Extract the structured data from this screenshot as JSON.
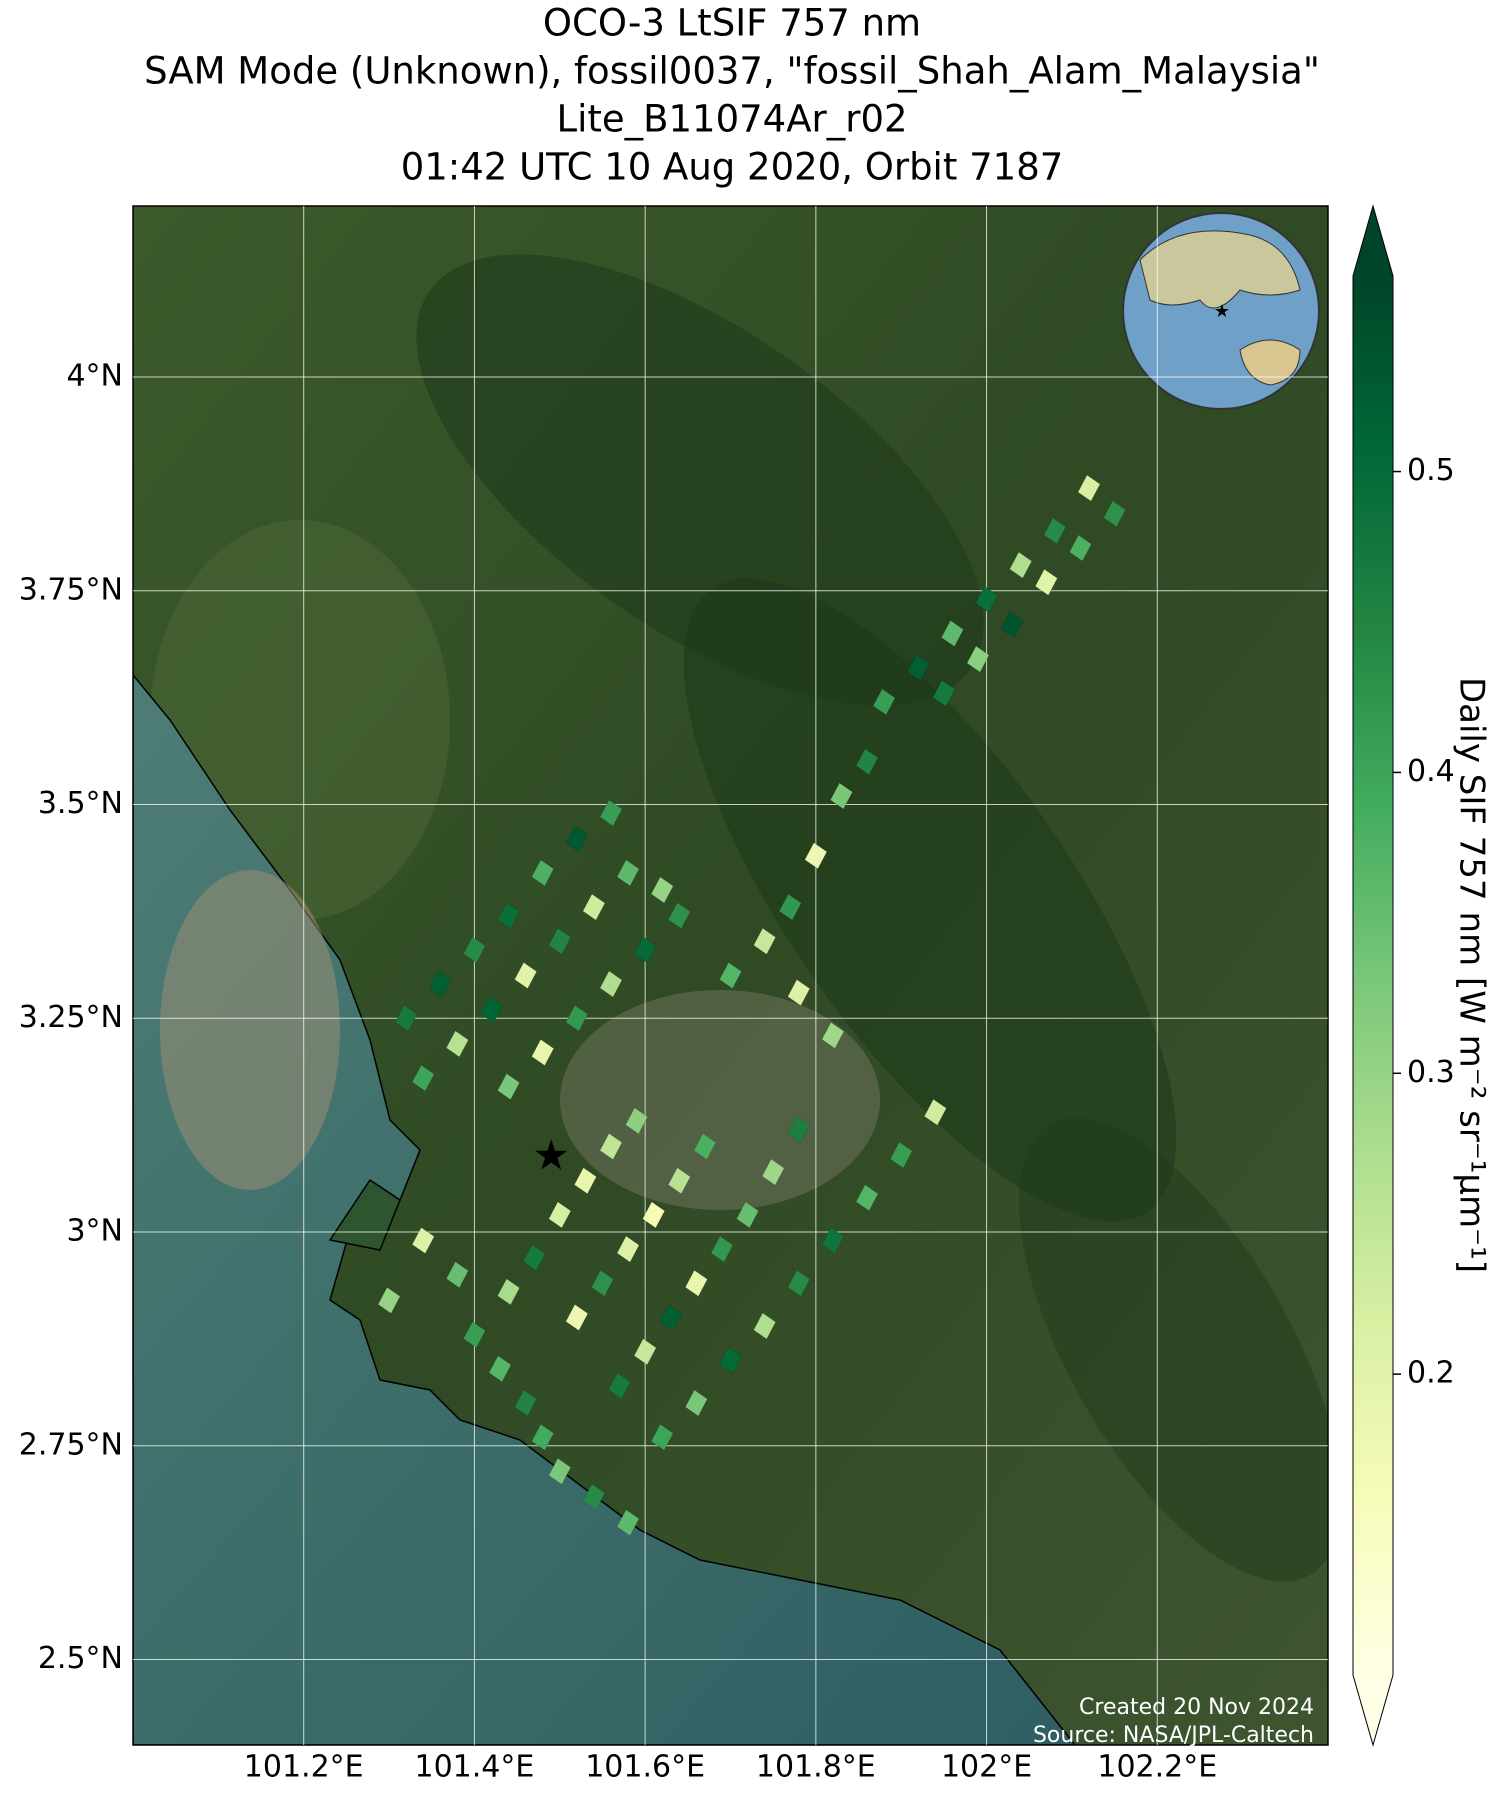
{
  "chart_data": {
    "type": "map",
    "title": [
      "OCO-3 LtSIF 757 nm",
      "SAM Mode (Unknown), fossil0037, \"fossil_Shah_Alam_Malaysia\"",
      "Lite_B11074Ar_r02",
      "01:42 UTC 10 Aug 2020, Orbit 7187"
    ],
    "xlim": [
      101.0,
      102.4
    ],
    "ylim": [
      2.4,
      4.2
    ],
    "xticks": [
      {
        "value": 101.2,
        "label": "101.2°E"
      },
      {
        "value": 101.4,
        "label": "101.4°E"
      },
      {
        "value": 101.6,
        "label": "101.6°E"
      },
      {
        "value": 101.8,
        "label": "101.8°E"
      },
      {
        "value": 102.0,
        "label": "102°E"
      },
      {
        "value": 102.2,
        "label": "102.2°E"
      }
    ],
    "yticks": [
      {
        "value": 2.5,
        "label": "2.5°N"
      },
      {
        "value": 2.75,
        "label": "2.75°N"
      },
      {
        "value": 3.0,
        "label": "3°N"
      },
      {
        "value": 3.25,
        "label": "3.25°N"
      },
      {
        "value": 3.5,
        "label": "3.5°N"
      },
      {
        "value": 3.75,
        "label": "3.75°N"
      },
      {
        "value": 4.0,
        "label": "4°N"
      }
    ],
    "grid": true,
    "x": [
      101.4,
      101.43,
      101.46,
      101.48,
      101.5,
      101.54,
      101.58,
      101.44,
      101.47,
      101.5,
      101.53,
      101.56,
      101.59,
      101.52,
      101.55,
      101.58,
      101.61,
      101.64,
      101.67,
      101.57,
      101.6,
      101.63,
      101.66,
      101.69,
      101.72,
      101.75,
      101.78,
      101.62,
      101.66,
      101.7,
      101.74,
      101.78,
      101.82,
      101.86,
      101.9,
      101.94,
      101.38,
      101.34,
      101.3,
      101.32,
      101.36,
      101.4,
      101.44,
      101.48,
      101.52,
      101.56,
      101.34,
      101.38,
      101.42,
      101.46,
      101.5,
      101.54,
      101.58,
      101.62,
      101.44,
      101.48,
      101.52,
      101.56,
      101.6,
      101.64,
      101.7,
      101.74,
      101.77,
      101.8,
      101.83,
      101.86,
      101.78,
      101.82,
      101.88,
      101.92,
      101.96,
      102.0,
      102.04,
      102.08,
      102.12,
      101.95,
      101.99,
      102.03,
      102.07,
      102.11,
      102.15
    ],
    "y": [
      2.88,
      2.84,
      2.8,
      2.76,
      2.72,
      2.69,
      2.66,
      2.93,
      2.97,
      3.02,
      3.06,
      3.1,
      3.13,
      2.9,
      2.94,
      2.98,
      3.02,
      3.06,
      3.1,
      2.82,
      2.86,
      2.9,
      2.94,
      2.98,
      3.02,
      3.07,
      3.12,
      2.76,
      2.8,
      2.85,
      2.89,
      2.94,
      2.99,
      3.04,
      3.09,
      3.14,
      2.95,
      2.99,
      2.92,
      3.25,
      3.29,
      3.33,
      3.37,
      3.42,
      3.46,
      3.49,
      3.18,
      3.22,
      3.26,
      3.3,
      3.34,
      3.38,
      3.42,
      3.4,
      3.17,
      3.21,
      3.25,
      3.29,
      3.33,
      3.37,
      3.3,
      3.34,
      3.38,
      3.44,
      3.51,
      3.55,
      3.28,
      3.23,
      3.62,
      3.66,
      3.7,
      3.74,
      3.78,
      3.82,
      3.87,
      3.63,
      3.67,
      3.71,
      3.76,
      3.8,
      3.84
    ],
    "values": [
      0.41,
      0.37,
      0.45,
      0.39,
      0.33,
      0.44,
      0.36,
      0.28,
      0.47,
      0.22,
      0.19,
      0.25,
      0.31,
      0.18,
      0.43,
      0.21,
      0.16,
      0.26,
      0.38,
      0.47,
      0.24,
      0.52,
      0.19,
      0.42,
      0.35,
      0.29,
      0.46,
      0.4,
      0.33,
      0.5,
      0.27,
      0.44,
      0.48,
      0.37,
      0.41,
      0.23,
      0.35,
      0.21,
      0.3,
      0.47,
      0.52,
      0.44,
      0.49,
      0.38,
      0.53,
      0.41,
      0.4,
      0.26,
      0.51,
      0.2,
      0.45,
      0.23,
      0.36,
      0.3,
      0.33,
      0.19,
      0.42,
      0.27,
      0.5,
      0.43,
      0.37,
      0.24,
      0.42,
      0.18,
      0.33,
      0.45,
      0.21,
      0.29,
      0.41,
      0.52,
      0.36,
      0.49,
      0.27,
      0.44,
      0.22,
      0.47,
      0.31,
      0.54,
      0.2,
      0.38,
      0.43
    ],
    "marker": {
      "x": 101.49,
      "y": 3.09,
      "color": "#ff0000"
    },
    "clim": [
      0.1,
      0.565
    ],
    "cticks": [
      0.2,
      0.3,
      0.4,
      0.5
    ],
    "colormap": [
      "#ffffe5",
      "#f7fcb9",
      "#d9f0a3",
      "#addd8e",
      "#78c679",
      "#41ab5d",
      "#238443",
      "#006837",
      "#004529"
    ],
    "colorbar_label": "Daily SIF 757 nm [W m⁻² sr⁻¹μm⁻¹]",
    "credits": [
      "Created 20 Nov 2024",
      "Source: NASA/JPL-Caltech"
    ]
  }
}
